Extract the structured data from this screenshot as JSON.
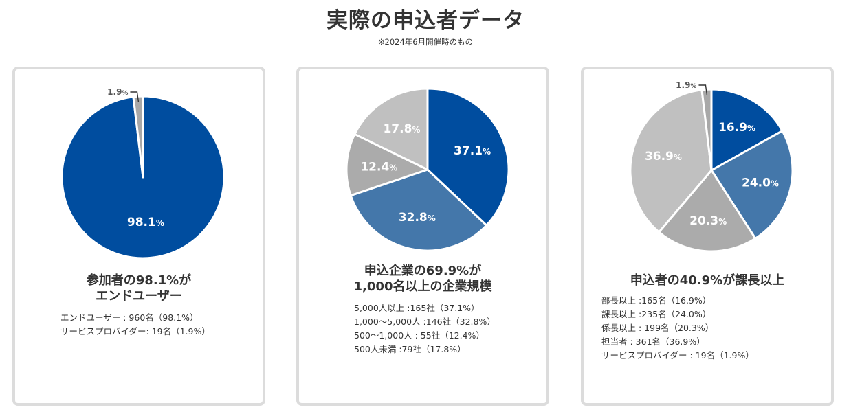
{
  "title": "実際の申込者データ",
  "note": "※2024年6月開催時のもの",
  "percent_sign": "%",
  "colors": {
    "navy": "#004d9f",
    "steel": "#4477aa",
    "gray": "#ababab",
    "light": "#c0c0c0",
    "tiny": "#a8a8a8"
  },
  "cards": [
    {
      "headline_lines": [
        "参加者の98.1%が",
        "エンドユーザー"
      ],
      "details": [
        "エンドユーザー : 960名（98.1%）",
        "サービスプロバイダー: 19名（1.9%）"
      ]
    },
    {
      "headline_lines": [
        "申込企業の69.9%が",
        "1,000名以上の企業規模"
      ],
      "details": [
        "5,000人以上 :165社（37.1%）",
        "1,000〜5,000人 :146社（32.8%）",
        "500〜1,000人 : 55社（12.4%）",
        "500人未満 :79社（17.8%）"
      ]
    },
    {
      "headline_lines": [
        "申込者の40.9%が課長以上"
      ],
      "details": [
        "部長以上 :165名（16.9%）",
        "課長以上 :235名（24.0%）",
        "係長以上 : 199名（20.3%）",
        "担当者 : 361名（36.9%）",
        "サービスプロバイダー : 19名（1.9%）"
      ]
    }
  ],
  "chart_data": [
    {
      "type": "pie",
      "title": "参加者の98.1%がエンドユーザー",
      "slices": [
        {
          "name": "エンドユーザー",
          "value": 98.1,
          "label": "98.1",
          "color": "#004d9f"
        },
        {
          "name": "サービスプロバイダー",
          "value": 1.9,
          "label": "1.9",
          "color": "#a8a8a8"
        }
      ]
    },
    {
      "type": "pie",
      "title": "申込企業の69.9%が1,000名以上の企業規模",
      "slices": [
        {
          "name": "5,000人以上",
          "value": 37.1,
          "label": "37.1",
          "color": "#004d9f"
        },
        {
          "name": "1,000〜5,000人",
          "value": 32.8,
          "label": "32.8",
          "color": "#4477aa"
        },
        {
          "name": "500〜1,000人",
          "value": 12.4,
          "label": "12.4",
          "color": "#ababab"
        },
        {
          "name": "500人未満",
          "value": 17.8,
          "label": "17.8",
          "color": "#c0c0c0"
        }
      ]
    },
    {
      "type": "pie",
      "title": "申込者の40.9%が課長以上",
      "slices": [
        {
          "name": "部長以上",
          "value": 16.9,
          "label": "16.9",
          "color": "#004d9f"
        },
        {
          "name": "課長以上",
          "value": 24.0,
          "label": "24.0",
          "color": "#4477aa"
        },
        {
          "name": "係長以上",
          "value": 20.3,
          "label": "20.3",
          "color": "#ababab"
        },
        {
          "name": "担当者",
          "value": 36.9,
          "label": "36.9",
          "color": "#c0c0c0"
        },
        {
          "name": "サービスプロバイダー",
          "value": 1.9,
          "label": "1.9",
          "color": "#a8a8a8"
        }
      ]
    }
  ]
}
